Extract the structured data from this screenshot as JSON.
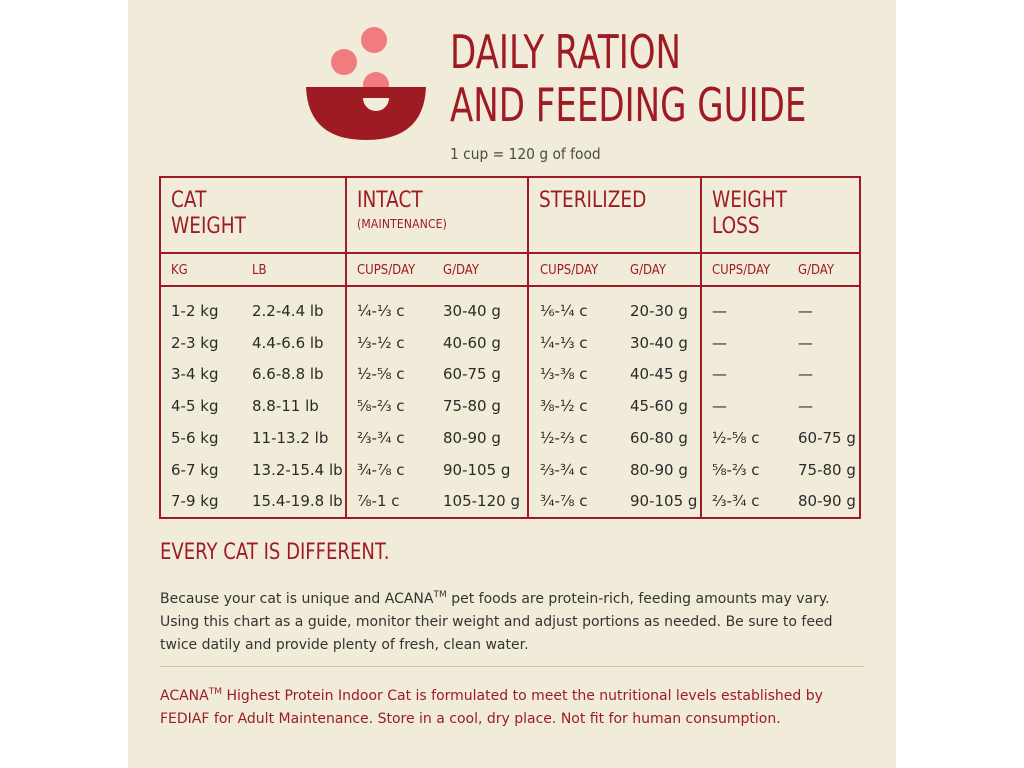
{
  "header": {
    "title_line1": "DAILY RATION",
    "title_line2": "AND FEEDING GUIDE",
    "subtitle": "1 cup = 120 g of food"
  },
  "colors": {
    "brand_red": "#9e1b23",
    "accent_pink": "#f07c7f",
    "background": "#f1ecd9"
  },
  "icon": "food-bowl-icon",
  "table": {
    "groups": [
      {
        "line1": "CAT",
        "line2": "WEIGHT",
        "sub": ""
      },
      {
        "line1": "INTACT",
        "line2": "",
        "sub": "(MAINTENANCE)"
      },
      {
        "line1": "STERILIZED",
        "line2": "",
        "sub": ""
      },
      {
        "line1": "WEIGHT",
        "line2": "LOSS",
        "sub": ""
      }
    ],
    "units": [
      "KG",
      "LB",
      "CUPS/DAY",
      "G/DAY",
      "CUPS/DAY",
      "G/DAY",
      "CUPS/DAY",
      "G/DAY"
    ],
    "rows": [
      [
        "1-2 kg",
        "2.2-4.4 lb",
        "¼-⅓ c",
        "30-40 g",
        "⅙-¼ c",
        "20-30 g",
        "—",
        "—"
      ],
      [
        "2-3 kg",
        "4.4-6.6 lb",
        "⅓-½ c",
        "40-60 g",
        "¼-⅓ c",
        "30-40 g",
        "—",
        "—"
      ],
      [
        "3-4 kg",
        "6.6-8.8 lb",
        "½-⅝ c",
        "60-75 g",
        "⅓-⅜ c",
        "40-45 g",
        "—",
        "—"
      ],
      [
        "4-5 kg",
        "8.8-11 lb",
        "⅝-⅔ c",
        "75-80 g",
        "⅜-½ c",
        "45-60 g",
        "—",
        "—"
      ],
      [
        "5-6 kg",
        "11-13.2 lb",
        "⅔-¾ c",
        "80-90 g",
        "½-⅔ c",
        "60-80 g",
        "½-⅝ c",
        "60-75 g"
      ],
      [
        "6-7 kg",
        "13.2-15.4 lb",
        "¾-⅞ c",
        "90-105 g",
        "⅔-¾ c",
        "80-90 g",
        "⅝-⅔ c",
        "75-80 g"
      ],
      [
        "7-9 kg",
        "15.4-19.8 lb",
        "⅞-1 c",
        "105-120 g",
        "¾-⅞ c",
        "90-105 g",
        "⅔-¾ c",
        "80-90 g"
      ]
    ]
  },
  "section": {
    "title": "EVERY CAT IS DIFFERENT.",
    "body_part1": "Because your cat is unique and ACANA",
    "tm": "TM",
    "body_part2": " pet foods are protein-rich, feeding amounts may vary. Using this chart as a guide, monitor their weight and adjust portions as needed. Be sure to feed twice datily and provide plenty of fresh, clean water."
  },
  "footnote": {
    "part1": "ACANA",
    "tm": "TM",
    "part2": " Highest Protein Indoor Cat is formulated to meet the nutritional levels established by FEDIAF for Adult Maintenance. Store in a cool, dry place. Not fit for human consumption."
  }
}
